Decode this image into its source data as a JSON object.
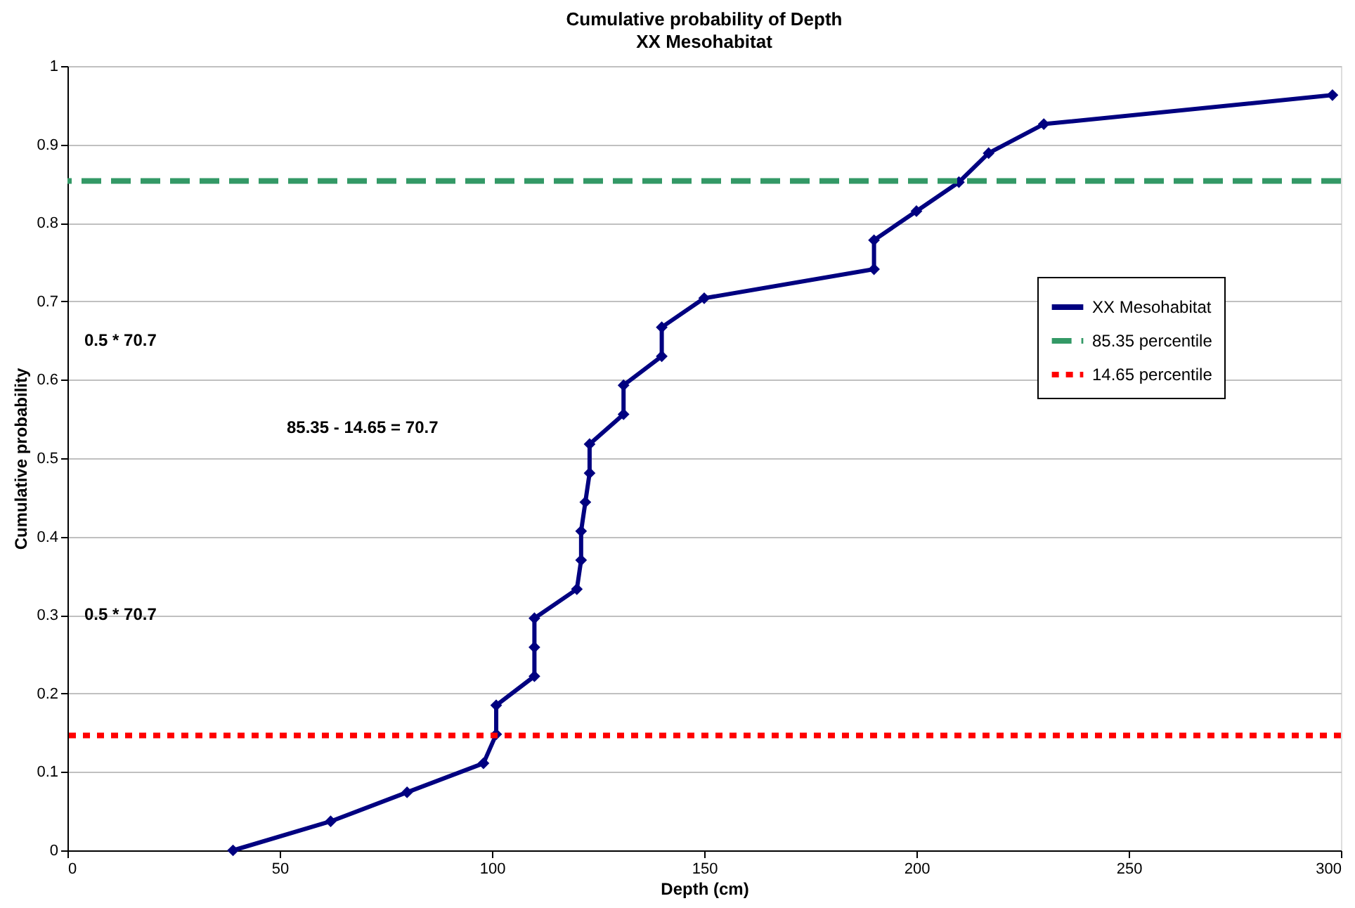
{
  "chart_data": {
    "type": "line",
    "title": "Cumulative probability of Depth",
    "subtitle": "XX Mesohabitat",
    "xlabel": "Depth (cm)",
    "ylabel": "Cumulative probability",
    "x": [
      39,
      62,
      80,
      98,
      101,
      101,
      110,
      110,
      110,
      120,
      121,
      121,
      122,
      123,
      123,
      131,
      131,
      140,
      140,
      150,
      190,
      190,
      200,
      210,
      217,
      230,
      298
    ],
    "series": [
      {
        "name": "XX Mesohabitat",
        "color": "#000080",
        "values": [
          0,
          0.037,
          0.074,
          0.111,
          0.148,
          0.185,
          0.222,
          0.259,
          0.296,
          0.333,
          0.37,
          0.407,
          0.444,
          0.481,
          0.518,
          0.556,
          0.593,
          0.63,
          0.667,
          0.704,
          0.741,
          0.778,
          0.815,
          0.852,
          0.889,
          0.926,
          0.963
        ]
      }
    ],
    "marker": "diamond",
    "line_style": "solid",
    "xlim": [
      0,
      300
    ],
    "xticks": [
      0,
      50,
      100,
      150,
      200,
      250,
      300
    ],
    "ylim": [
      0,
      1
    ],
    "yticks": [
      0,
      0.1,
      0.2,
      0.3,
      0.4,
      0.5,
      0.6,
      0.7,
      0.8,
      0.9,
      1
    ],
    "grid": "y",
    "legend": "right",
    "ref_lines": [
      {
        "axis": "y",
        "value": 0.8535,
        "label": "85.35 percentile",
        "color": "#339966",
        "line_style": "dashed"
      },
      {
        "axis": "y",
        "value": 0.1465,
        "label": "14.65 percentile",
        "color": "#ff0000",
        "line_style": "dotted"
      }
    ],
    "annotations": [
      "0.5 * 70.7",
      "0.5 * 70.7",
      "85.35 - 14.65 = 70.7"
    ]
  }
}
